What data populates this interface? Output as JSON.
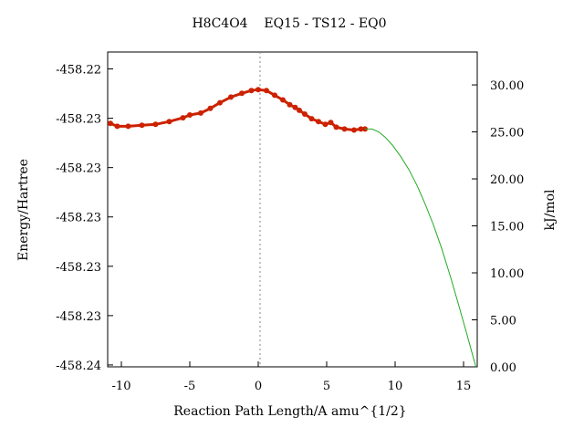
{
  "chart_data": {
    "type": "line",
    "title": "H8C4O4    EQ15 - TS12 - EQ0",
    "xlabel": "Reaction Path Length/A amu^{1/2}",
    "ylabel_left": "Energy/Hartree",
    "ylabel_right": "kJ/mol",
    "xlim": [
      -11,
      16
    ],
    "x_ticks": [
      -10,
      -5,
      0,
      5,
      10,
      15
    ],
    "x_tick_labels": [
      "-10",
      "-5",
      "0",
      "5",
      "10",
      "15"
    ],
    "right_ylim": [
      0,
      33.5
    ],
    "right_ticks": [
      0,
      5,
      10,
      15,
      20,
      25,
      30
    ],
    "right_tick_labels": [
      "0.00",
      "5.00",
      "10.00",
      "15.00",
      "20.00",
      "25.00",
      "30.00"
    ],
    "left_ticks_kj": [
      31.7,
      26.45,
      21.2,
      15.95,
      10.7,
      5.45,
      0.2
    ],
    "left_tick_labels": [
      "-458.22",
      "-458.23",
      "-458.23",
      "-458.23",
      "-458.23",
      "-458.23",
      "-458.24"
    ],
    "vline_x": 0,
    "series": [
      {
        "color": "#cc2200",
        "style": "markers",
        "points": [
          [
            -10.8,
            25.9
          ],
          [
            -10.3,
            25.6
          ],
          [
            -9.5,
            25.6
          ],
          [
            -8.5,
            25.7
          ],
          [
            -7.5,
            25.8
          ],
          [
            -6.5,
            26.1
          ],
          [
            -5.5,
            26.5
          ],
          [
            -5.0,
            26.8
          ],
          [
            -4.2,
            27.0
          ],
          [
            -3.5,
            27.5
          ],
          [
            -2.8,
            28.1
          ],
          [
            -2.0,
            28.7
          ],
          [
            -1.2,
            29.1
          ],
          [
            -0.5,
            29.4
          ],
          [
            0.0,
            29.5
          ],
          [
            0.6,
            29.4
          ],
          [
            1.2,
            28.9
          ],
          [
            1.8,
            28.4
          ],
          [
            2.3,
            27.9
          ],
          [
            2.7,
            27.6
          ],
          [
            3.0,
            27.3
          ],
          [
            3.4,
            26.9
          ],
          [
            3.9,
            26.4
          ],
          [
            4.4,
            26.1
          ],
          [
            4.9,
            25.8
          ],
          [
            5.3,
            26.0
          ],
          [
            5.7,
            25.5
          ],
          [
            6.3,
            25.3
          ],
          [
            7.0,
            25.2
          ],
          [
            7.5,
            25.3
          ],
          [
            7.8,
            25.3
          ]
        ]
      },
      {
        "color": "#22aa22",
        "style": "line",
        "points": [
          [
            7.8,
            25.3
          ],
          [
            8.3,
            25.3
          ],
          [
            8.8,
            25.0
          ],
          [
            9.3,
            24.4
          ],
          [
            9.8,
            23.6
          ],
          [
            10.4,
            22.4
          ],
          [
            11.0,
            21.0
          ],
          [
            11.6,
            19.3
          ],
          [
            12.2,
            17.3
          ],
          [
            12.8,
            15.1
          ],
          [
            13.4,
            12.6
          ],
          [
            14.0,
            9.8
          ],
          [
            14.6,
            6.8
          ],
          [
            15.2,
            3.7
          ],
          [
            15.9,
            0.0
          ]
        ]
      }
    ]
  }
}
